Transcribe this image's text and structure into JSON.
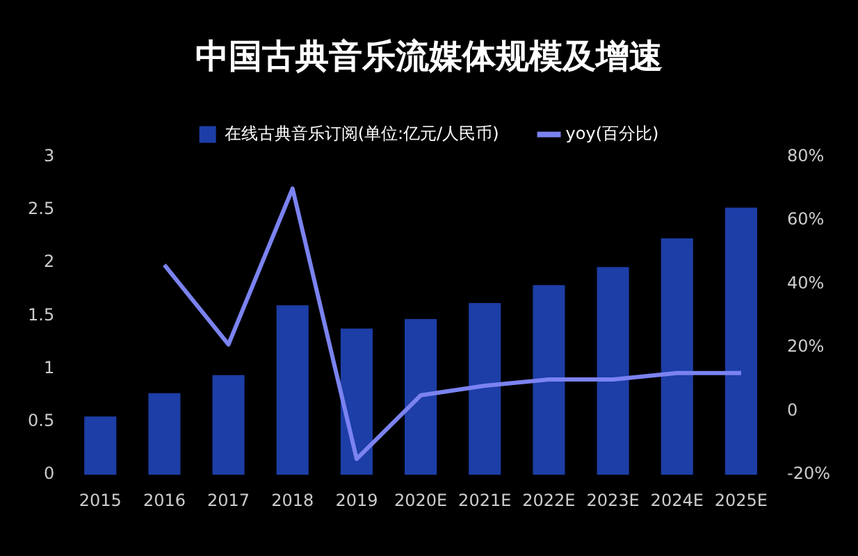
{
  "chart_data": {
    "type": "bar",
    "title": "中国古典音乐流媒体规模及增速",
    "categories": [
      "2015",
      "2016",
      "2017",
      "2018",
      "2019",
      "2020E",
      "2021E",
      "2022E",
      "2023E",
      "2024E",
      "2025E"
    ],
    "series": [
      {
        "name": "在线古典音乐订阅(单位:亿元/人民币)",
        "color": "#1c3ea6",
        "values": [
          0.55,
          0.77,
          0.94,
          1.6,
          1.38,
          1.47,
          1.62,
          1.79,
          1.96,
          2.23,
          2.52
        ]
      },
      {
        "name": "yoy(百分比)",
        "type": "line",
        "axis": "y2",
        "color": "#7b83f0",
        "values": [
          null,
          46,
          21,
          70,
          -15,
          5,
          8,
          10,
          10,
          12,
          12
        ]
      }
    ],
    "ylim": [
      0,
      3
    ],
    "yticks": [
      0,
      0.5,
      1,
      1.5,
      2,
      2.5,
      3
    ],
    "y2lim": [
      -20,
      80
    ],
    "y2ticks": [
      {
        "value": -20,
        "label": "-20%"
      },
      {
        "value": 0,
        "label": "0"
      },
      {
        "value": 20,
        "label": "20%"
      },
      {
        "value": 40,
        "label": "40%"
      },
      {
        "value": 60,
        "label": "60%"
      },
      {
        "value": 80,
        "label": "80%"
      }
    ],
    "grid": false,
    "legend": "top",
    "marker": "none"
  }
}
